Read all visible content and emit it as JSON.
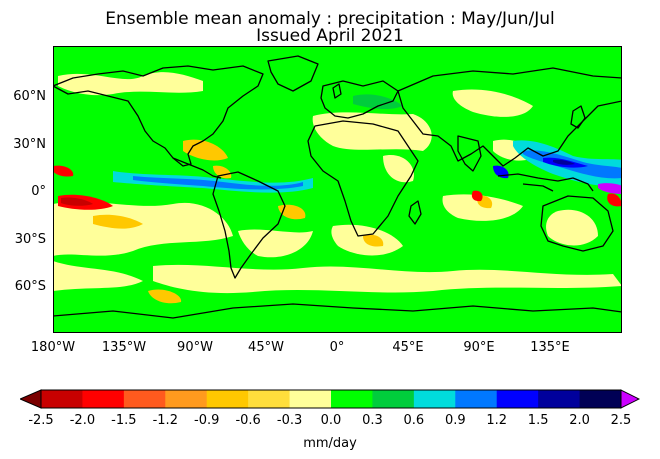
{
  "title": {
    "line1": "Ensemble mean anomaly : precipitation : May/Jun/Jul",
    "line2": "Issued April 2021"
  },
  "map": {
    "lat_labels": [
      "60°N",
      "30°N",
      "0°",
      "30°S",
      "60°S"
    ],
    "lon_labels": [
      "180°W",
      "135°W",
      "90°W",
      "45°W",
      "0°",
      "45°E",
      "90°E",
      "135°E"
    ],
    "land_outline_color": "#000000",
    "dominant_fill": "#00ff00"
  },
  "colorbar": {
    "label": "mm/day",
    "ticks": [
      "-2.5",
      "-2.0",
      "-1.5",
      "-1.2",
      "-0.9",
      "-0.6",
      "-0.3",
      "0.0",
      "0.3",
      "0.6",
      "0.9",
      "1.2",
      "1.5",
      "2.0",
      "2.5"
    ],
    "under_color": "#7a0000",
    "over_color": "#cc00ff",
    "colors": [
      "#c80000",
      "#ff0000",
      "#ff5a1e",
      "#ff9a1e",
      "#ffc800",
      "#ffde3c",
      "#ffff9a",
      "#00ff00",
      "#00cd3c",
      "#00dcdc",
      "#0078ff",
      "#0000ff",
      "#00009c",
      "#000055"
    ]
  }
}
